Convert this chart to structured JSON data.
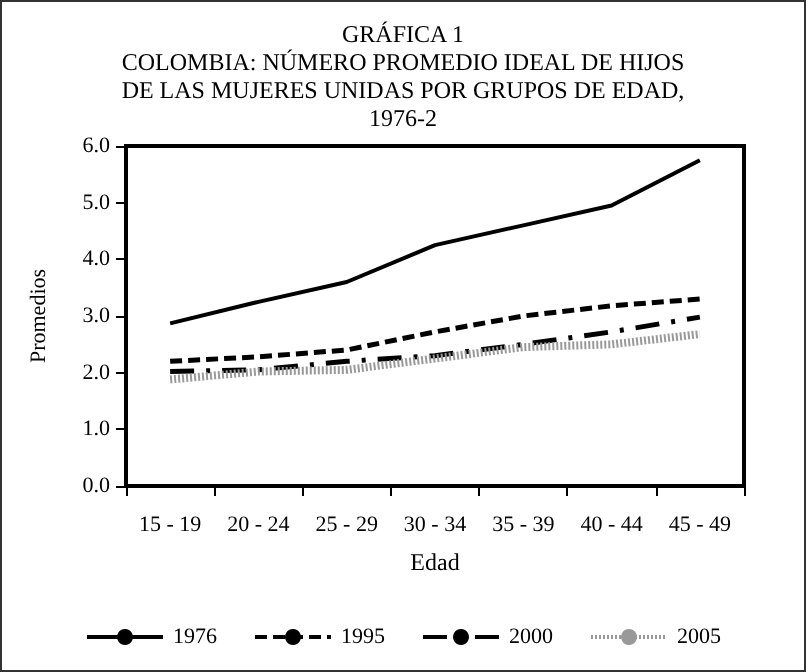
{
  "chart_data": {
    "type": "line",
    "title": "GRÁFICA 1\nCOLOMBIA: NÚMERO PROMEDIO IDEAL DE HIJOS\nDE LAS MUJERES UNIDAS POR GRUPOS DE EDAD,\n1976-2",
    "xlabel": "Edad",
    "ylabel": "Promedios",
    "categories": [
      "15 - 19",
      "20 - 24",
      "25 - 29",
      "30 - 34",
      "35 - 39",
      "40 - 44",
      "45 - 49"
    ],
    "series": [
      {
        "name": "1976",
        "color": "#000000",
        "line_style": "solid",
        "values": [
          2.87,
          3.25,
          3.6,
          4.25,
          4.6,
          4.95,
          5.75
        ]
      },
      {
        "name": "1995",
        "color": "#000000",
        "line_style": "dashed",
        "values": [
          2.2,
          2.28,
          2.4,
          2.72,
          3.0,
          3.18,
          3.3
        ]
      },
      {
        "name": "2000",
        "color": "#000000",
        "line_style": "dashdot",
        "values": [
          2.02,
          2.05,
          2.2,
          2.3,
          2.5,
          2.72,
          2.98
        ]
      },
      {
        "name": "2005",
        "color": "#999999",
        "line_style": "dotted",
        "values": [
          1.88,
          2.02,
          2.05,
          2.25,
          2.45,
          2.5,
          2.68
        ]
      }
    ],
    "ylim": [
      0,
      6
    ],
    "yticks": [
      {
        "value": 0,
        "label": "0.0"
      },
      {
        "value": 1,
        "label": "1.0"
      },
      {
        "value": 2,
        "label": "2.0"
      },
      {
        "value": 3,
        "label": "3.0"
      },
      {
        "value": 4,
        "label": "4.0"
      },
      {
        "value": 5,
        "label": "5.0"
      },
      {
        "value": 6,
        "label": "6.0"
      }
    ],
    "grid": false,
    "legend": "bottom",
    "marker": "none"
  }
}
